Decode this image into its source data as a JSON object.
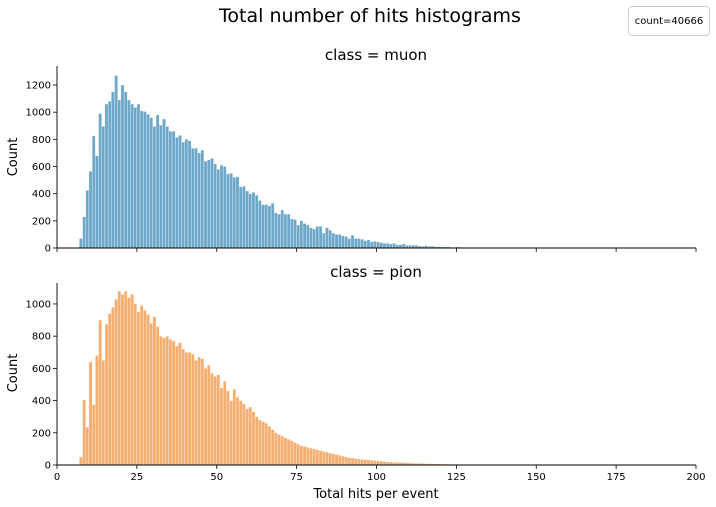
{
  "figure": {
    "title": "Total number of hits histograms",
    "legend_text": "count=40666"
  },
  "chart_data": [
    {
      "type": "bar",
      "title": "class = muon",
      "xlabel": "",
      "ylabel": "Count",
      "xlim": [
        0,
        200
      ],
      "ylim": [
        0,
        1340
      ],
      "xticks": [
        0,
        25,
        50,
        75,
        100,
        125,
        150,
        175,
        200
      ],
      "yticks": [
        0,
        200,
        400,
        600,
        800,
        1000,
        1200
      ],
      "show_xtick_labels": false,
      "color": "#5d9ec4",
      "bin_start": 7,
      "bin_width": 1,
      "values": [
        70,
        230,
        425,
        565,
        825,
        680,
        990,
        895,
        1060,
        1080,
        1150,
        1270,
        1090,
        1200,
        1150,
        1090,
        1060,
        1035,
        1060,
        1010,
        1005,
        985,
        960,
        895,
        980,
        905,
        950,
        895,
        860,
        860,
        815,
        830,
        780,
        800,
        790,
        735,
        735,
        700,
        720,
        640,
        650,
        660,
        620,
        580,
        610,
        600,
        545,
        550,
        520,
        525,
        450,
        455,
        420,
        400,
        410,
        390,
        350,
        320,
        320,
        310,
        330,
        260,
        250,
        280,
        250,
        250,
        215,
        210,
        170,
        200,
        180,
        170,
        150,
        140,
        160,
        160,
        110,
        150,
        130,
        110,
        100,
        100,
        90,
        85,
        70,
        95,
        70,
        70,
        65,
        55,
        60,
        45,
        50,
        45,
        40,
        35,
        35,
        30,
        35,
        25,
        25,
        30,
        20,
        20,
        22,
        20,
        15,
        12,
        18,
        12,
        14,
        10,
        10,
        8,
        10,
        8,
        6,
        6,
        8,
        6,
        5,
        5,
        4,
        5,
        4,
        3,
        3,
        3,
        3,
        2,
        2,
        2,
        2,
        2,
        2,
        1,
        1,
        1,
        1,
        1,
        1,
        1,
        1,
        1,
        1,
        0,
        0,
        0,
        0,
        0,
        0,
        0,
        0,
        0,
        0,
        0,
        0,
        0,
        0,
        0,
        0,
        0,
        0,
        0,
        0,
        0,
        0,
        0,
        0,
        0,
        0,
        0,
        0,
        0,
        0,
        0,
        0,
        0,
        0,
        0,
        0,
        0,
        0,
        0,
        0,
        0,
        0,
        0,
        0,
        0,
        0,
        0,
        0,
        0,
        0,
        0
      ]
    },
    {
      "type": "bar",
      "title": "class = pion",
      "xlabel": "Total hits per event",
      "ylabel": "Count",
      "xlim": [
        0,
        200
      ],
      "ylim": [
        0,
        1130
      ],
      "xticks": [
        0,
        25,
        50,
        75,
        100,
        125,
        150,
        175,
        200
      ],
      "yticks": [
        0,
        200,
        400,
        600,
        800,
        1000
      ],
      "show_xtick_labels": true,
      "color": "#f4a460",
      "bin_start": 7,
      "bin_width": 1,
      "values": [
        50,
        405,
        235,
        640,
        375,
        680,
        900,
        650,
        875,
        940,
        980,
        1030,
        1080,
        1060,
        1080,
        1040,
        1060,
        1000,
        950,
        990,
        960,
        935,
        880,
        920,
        860,
        800,
        790,
        800,
        780,
        770,
        740,
        760,
        720,
        700,
        700,
        690,
        650,
        670,
        660,
        600,
        620,
        570,
        550,
        560,
        480,
        520,
        460,
        400,
        470,
        420,
        400,
        380,
        350,
        360,
        330,
        300,
        280,
        270,
        260,
        240,
        220,
        200,
        190,
        180,
        170,
        160,
        150,
        140,
        130,
        120,
        115,
        110,
        105,
        100,
        95,
        90,
        85,
        80,
        75,
        70,
        65,
        60,
        55,
        50,
        45,
        44,
        40,
        38,
        36,
        34,
        32,
        30,
        28,
        26,
        24,
        22,
        20,
        19,
        18,
        17,
        16,
        15,
        14,
        13,
        12,
        11,
        10,
        10,
        9,
        9,
        8,
        8,
        7,
        7,
        6,
        6,
        5,
        5,
        5,
        4,
        4,
        4,
        3,
        3,
        3,
        3,
        2,
        2,
        2,
        2,
        2,
        2,
        2,
        2,
        1,
        1,
        1,
        1,
        1,
        1,
        1,
        1,
        1,
        1,
        1,
        1,
        1,
        1,
        1,
        1,
        1,
        1,
        1,
        1,
        1,
        1,
        1,
        1,
        1,
        1,
        1,
        1,
        1,
        1,
        1,
        1,
        1,
        1,
        1,
        1,
        1,
        1,
        1,
        1,
        1,
        1,
        1,
        1,
        1,
        1,
        1,
        1,
        0,
        0,
        0,
        0,
        0,
        0,
        0,
        0,
        0,
        0,
        0,
        0,
        0,
        0,
        0
      ]
    }
  ]
}
